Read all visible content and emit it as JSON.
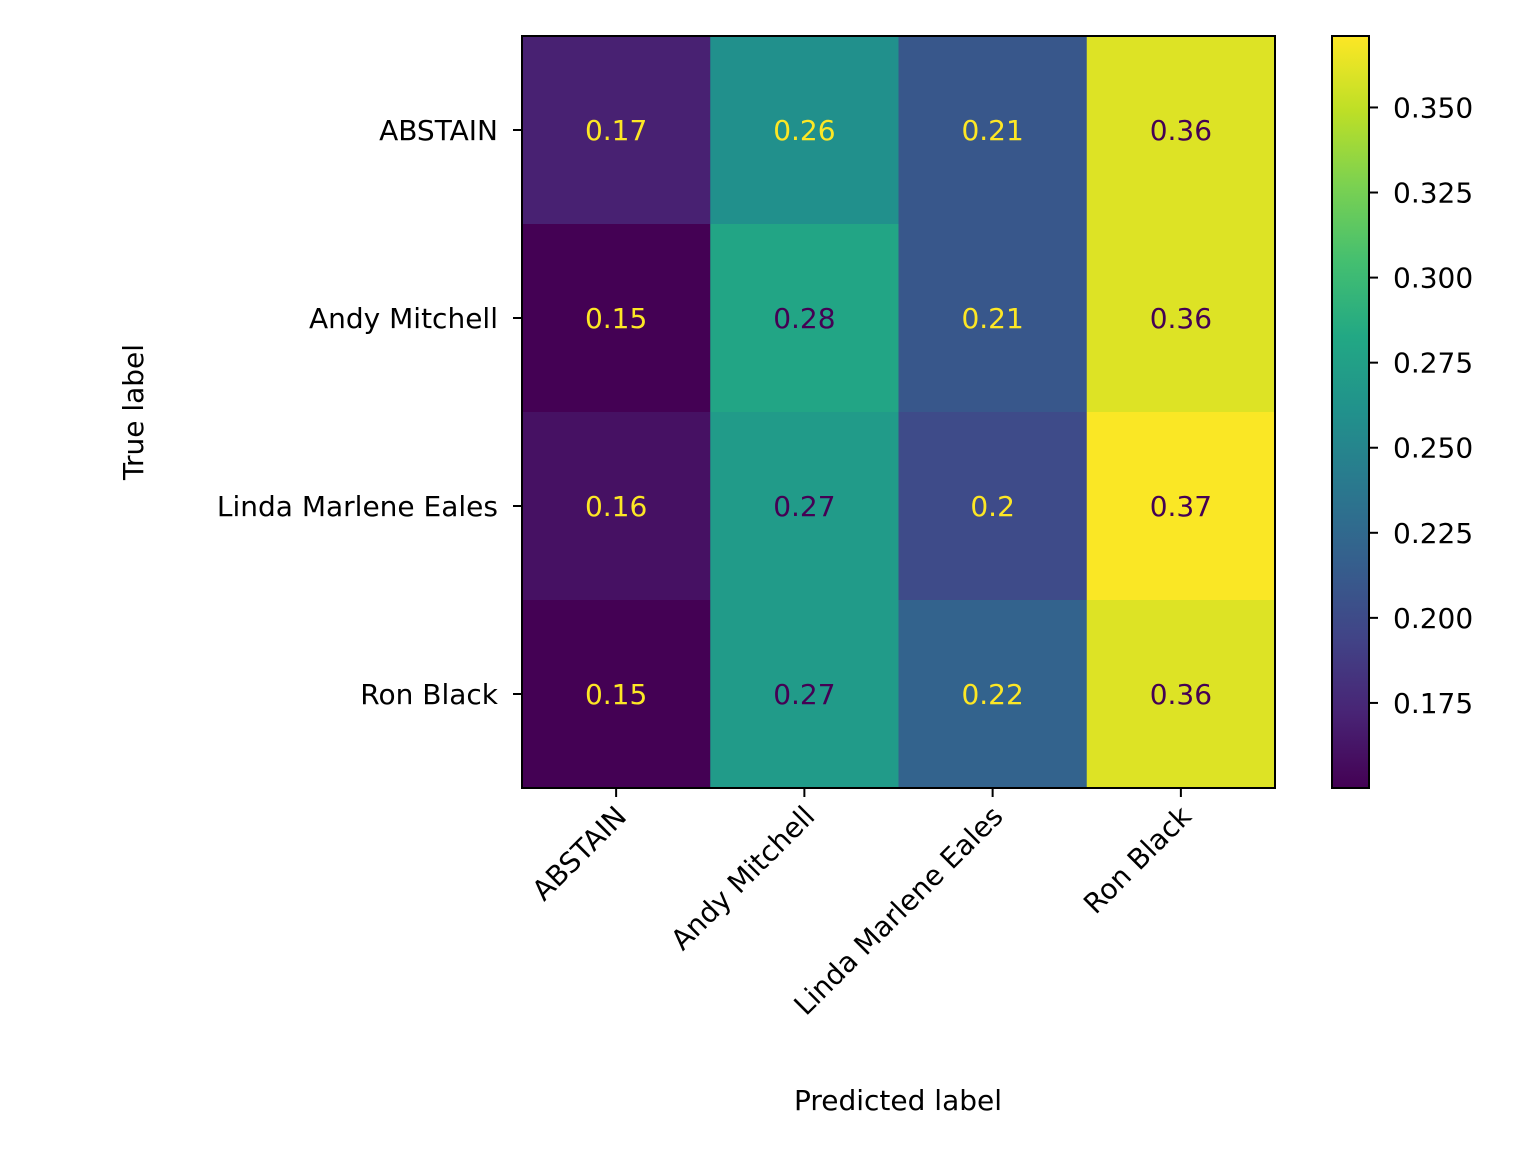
{
  "chart_data": {
    "type": "heatmap",
    "title": "",
    "xlabel": "Predicted label",
    "ylabel": "True label",
    "x_categories": [
      "ABSTAIN",
      "Andy Mitchell",
      "Linda Marlene Eales",
      "Ron Black"
    ],
    "y_categories": [
      "ABSTAIN",
      "Andy Mitchell",
      "Linda Marlene Eales",
      "Ron Black"
    ],
    "values": [
      [
        0.17,
        0.26,
        0.21,
        0.36
      ],
      [
        0.15,
        0.28,
        0.21,
        0.36
      ],
      [
        0.16,
        0.27,
        0.2,
        0.37
      ],
      [
        0.15,
        0.27,
        0.22,
        0.36
      ]
    ],
    "value_labels": [
      [
        "0.17",
        "0.26",
        "0.21",
        "0.36"
      ],
      [
        "0.15",
        "0.28",
        "0.21",
        "0.36"
      ],
      [
        "0.16",
        "0.27",
        "0.2",
        "0.37"
      ],
      [
        "0.15",
        "0.27",
        "0.22",
        "0.36"
      ]
    ],
    "colormap": "viridis",
    "colorbar": {
      "range": [
        0.15,
        0.371
      ],
      "ticks": [
        0.175,
        0.2,
        0.225,
        0.25,
        0.275,
        0.3,
        0.325,
        0.35
      ],
      "tick_labels": [
        "0.175",
        "0.200",
        "0.225",
        "0.250",
        "0.275",
        "0.300",
        "0.325",
        "0.350"
      ]
    },
    "grid": false,
    "x_tick_rotation": 45
  }
}
